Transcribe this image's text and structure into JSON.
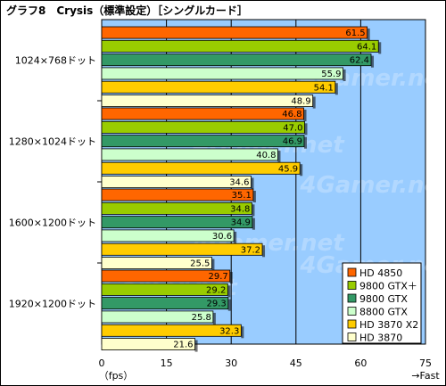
{
  "chart_data": {
    "type": "bar",
    "orientation": "horizontal",
    "title": "グラフ8　Crysis（標準設定）［シングルカード］",
    "categories": [
      "1024×768ドット",
      "1280×1024ドット",
      "1600×1200ドット",
      "1920×1200ドット"
    ],
    "series": [
      {
        "name": "HD 4850",
        "color": "#ff6600",
        "values": [
          61.5,
          46.8,
          35.1,
          29.7
        ]
      },
      {
        "name": "9800 GTX＋",
        "color": "#99cc00",
        "values": [
          64.1,
          47.0,
          34.8,
          29.2
        ]
      },
      {
        "name": "9800 GTX",
        "color": "#339966",
        "values": [
          62.4,
          46.9,
          34.9,
          29.3
        ]
      },
      {
        "name": "8800 GTX",
        "color": "#ccffcc",
        "values": [
          55.9,
          40.8,
          30.6,
          25.8
        ]
      },
      {
        "name": "HD 3870 X2",
        "color": "#ffcc00",
        "values": [
          54.1,
          45.9,
          37.2,
          32.3
        ]
      },
      {
        "name": "HD 3870",
        "color": "#ffffcc",
        "values": [
          48.9,
          34.6,
          25.5,
          21.6
        ]
      }
    ],
    "xlim": [
      0,
      75
    ],
    "xticks": [
      0,
      15,
      30,
      45,
      60,
      75
    ],
    "xlabel_left": "（fps）",
    "xlabel_right": "→Fast",
    "grid": true,
    "legend_position": "bottom-right",
    "plot_background": "#99ccff",
    "watermark": "4Gamer.net"
  }
}
